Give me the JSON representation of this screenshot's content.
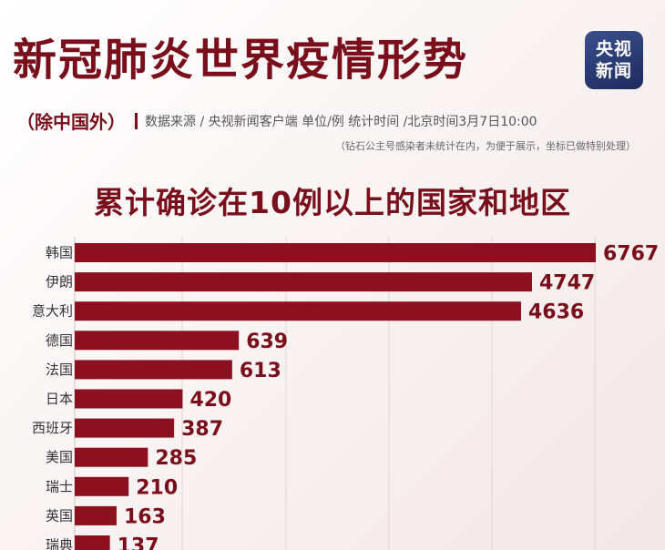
{
  "header": {
    "title": "新冠肺炎世界疫情形势",
    "logo_line1": "央视",
    "logo_line2": "新闻",
    "excluding": "（除中国外）",
    "source": "数据来源 / 央视新闻客户端  单位/例  统计时间 /北京时间3月7日10:00",
    "note": "（钻石公主号感染者未统计在内，为便于展示，坐标已做特别处理）"
  },
  "chart_data": {
    "type": "bar",
    "orientation": "horizontal",
    "title": "累计确诊在10例以上的国家和地区",
    "categories": [
      "韩国",
      "伊朗",
      "意大利",
      "德国",
      "法国",
      "日本",
      "西班牙",
      "美国",
      "瑞士",
      "英国",
      "瑞典"
    ],
    "values": [
      6767,
      4747,
      4636,
      639,
      613,
      420,
      387,
      285,
      210,
      163,
      137
    ],
    "bar_color": "#8c1020",
    "label_color": "#7a0f1c",
    "grid": true
  }
}
